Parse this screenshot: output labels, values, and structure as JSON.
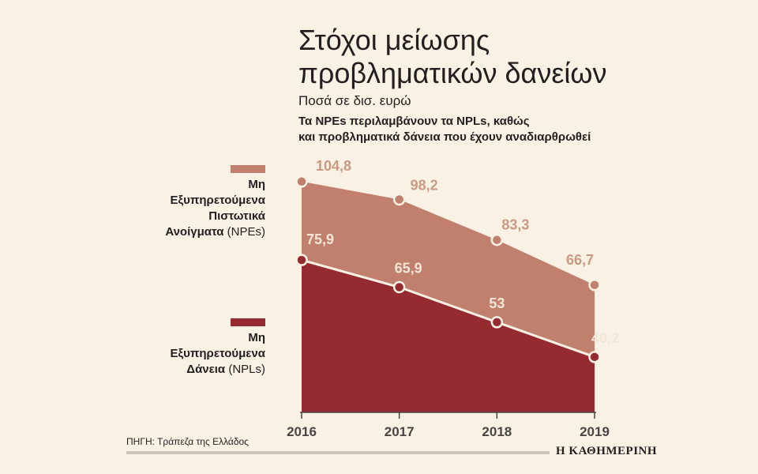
{
  "header": {
    "title_line1": "Στόχοι μείωσης",
    "title_line2": "προβληματικών δανείων",
    "subtitle": "Ποσά σε δισ. ευρώ",
    "note_line1": "Τα NPEs περιλαμβάνουν τα NPLs, καθώς",
    "note_line2": "και προβληματικά δάνεια που έχουν αναδιαρθρωθεί"
  },
  "legend": {
    "npe": {
      "line1": "Μη",
      "line2": "Εξυπηρετούμενα",
      "line3": "Πιστωτικά",
      "line4_bold": "Ανοίγματα",
      "line4_normal": " (NPEs)",
      "color": "#c1806d"
    },
    "npl": {
      "line1": "Μη",
      "line2": "Εξυπηρετούμενα",
      "line3_bold": "Δάνεια",
      "line3_normal": " (NPLs)",
      "color": "#952b30"
    }
  },
  "footer": {
    "source": "ΠΗΓΗ: Τράπεζα της Ελλάδος",
    "brand": "Η ΚΑΘΗΜΕΡΙΝΗ"
  },
  "colors": {
    "npe_fill": "#c1806d",
    "npl_fill": "#952b30",
    "npe_label": "#c99a83",
    "npl_label": "#f2e6d6",
    "line": "#f8f1e4"
  },
  "chart_data": {
    "type": "area",
    "categories": [
      "2016",
      "2017",
      "2018",
      "2019"
    ],
    "series": [
      {
        "name": "Μη Εξυπηρετούμενα Πιστωτικά Ανοίγματα (NPEs)",
        "values": [
          104.8,
          98.2,
          83.3,
          66.7
        ],
        "labels": [
          "104,8",
          "98,2",
          "83,3",
          "66,7"
        ]
      },
      {
        "name": "Μη Εξυπηρετούμενα Δάνεια (NPLs)",
        "values": [
          75.9,
          65.9,
          53,
          40.2
        ],
        "labels": [
          "75,9",
          "65,9",
          "53",
          "40,2"
        ]
      }
    ],
    "ylim": [
      -25,
      105
    ],
    "grid": false
  }
}
